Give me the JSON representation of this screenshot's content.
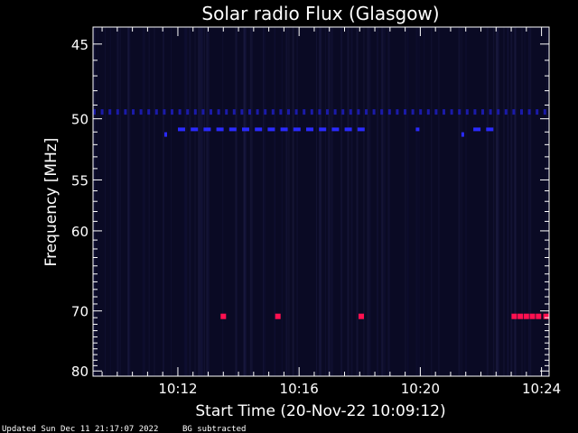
{
  "chart_data": {
    "type": "heatmap",
    "title": "Solar radio Flux (Glasgow)",
    "xlabel": "Start Time (20-Nov-22 10:09:12)",
    "ylabel": "Frequency [MHz]",
    "x_ticks": [
      "10:12",
      "10:16",
      "10:20",
      "10:24"
    ],
    "x_tick_minutes": [
      12,
      16,
      20,
      24
    ],
    "x_range_minutes": [
      9.2,
      24.25
    ],
    "y_ticks": [
      "45",
      "50",
      "55",
      "60",
      "70",
      "80"
    ],
    "y_tick_values": [
      45,
      50,
      55,
      60,
      70,
      80
    ],
    "y_range": [
      44,
      81
    ],
    "y_scale": "reciprocal",
    "background_color": "#0a0a24",
    "colors": {
      "weak": "#1a1aa8",
      "medium": "#2a2aff",
      "strong": "#ff1050"
    },
    "emission_rows": [
      {
        "freq": 49.5,
        "start_min": 9.2,
        "end_min": 24.25,
        "intensity": "weak",
        "pattern": "dashed"
      },
      {
        "freq": 50.8,
        "start_min": 12.0,
        "end_min": 18.1,
        "intensity": "medium",
        "pattern": "dashed"
      },
      {
        "freq": 50.8,
        "start_min": 21.75,
        "end_min": 22.4,
        "intensity": "medium",
        "pattern": "dashed"
      },
      {
        "freq": 50.8,
        "start_min": 19.85,
        "end_min": 19.95,
        "intensity": "medium",
        "pattern": "solid"
      }
    ],
    "emission_points": [
      {
        "t_min": 11.6,
        "freq": 51.2,
        "intensity": "medium"
      },
      {
        "t_min": 21.4,
        "freq": 51.2,
        "intensity": "medium"
      },
      {
        "t_min": 13.5,
        "freq": 70.8,
        "intensity": "strong"
      },
      {
        "t_min": 15.3,
        "freq": 70.8,
        "intensity": "strong"
      },
      {
        "t_min": 18.05,
        "freq": 70.8,
        "intensity": "strong"
      },
      {
        "t_min": 23.1,
        "freq": 70.8,
        "intensity": "strong"
      },
      {
        "t_min": 23.3,
        "freq": 70.8,
        "intensity": "strong"
      },
      {
        "t_min": 23.5,
        "freq": 70.8,
        "intensity": "strong"
      },
      {
        "t_min": 23.7,
        "freq": 70.8,
        "intensity": "strong"
      },
      {
        "t_min": 23.9,
        "freq": 70.8,
        "intensity": "strong"
      },
      {
        "t_min": 24.15,
        "freq": 70.8,
        "intensity": "strong"
      }
    ]
  },
  "footer": {
    "updated": "Updated Sun Dec 11 21:17:07 2022",
    "note": "BG subtracted"
  }
}
